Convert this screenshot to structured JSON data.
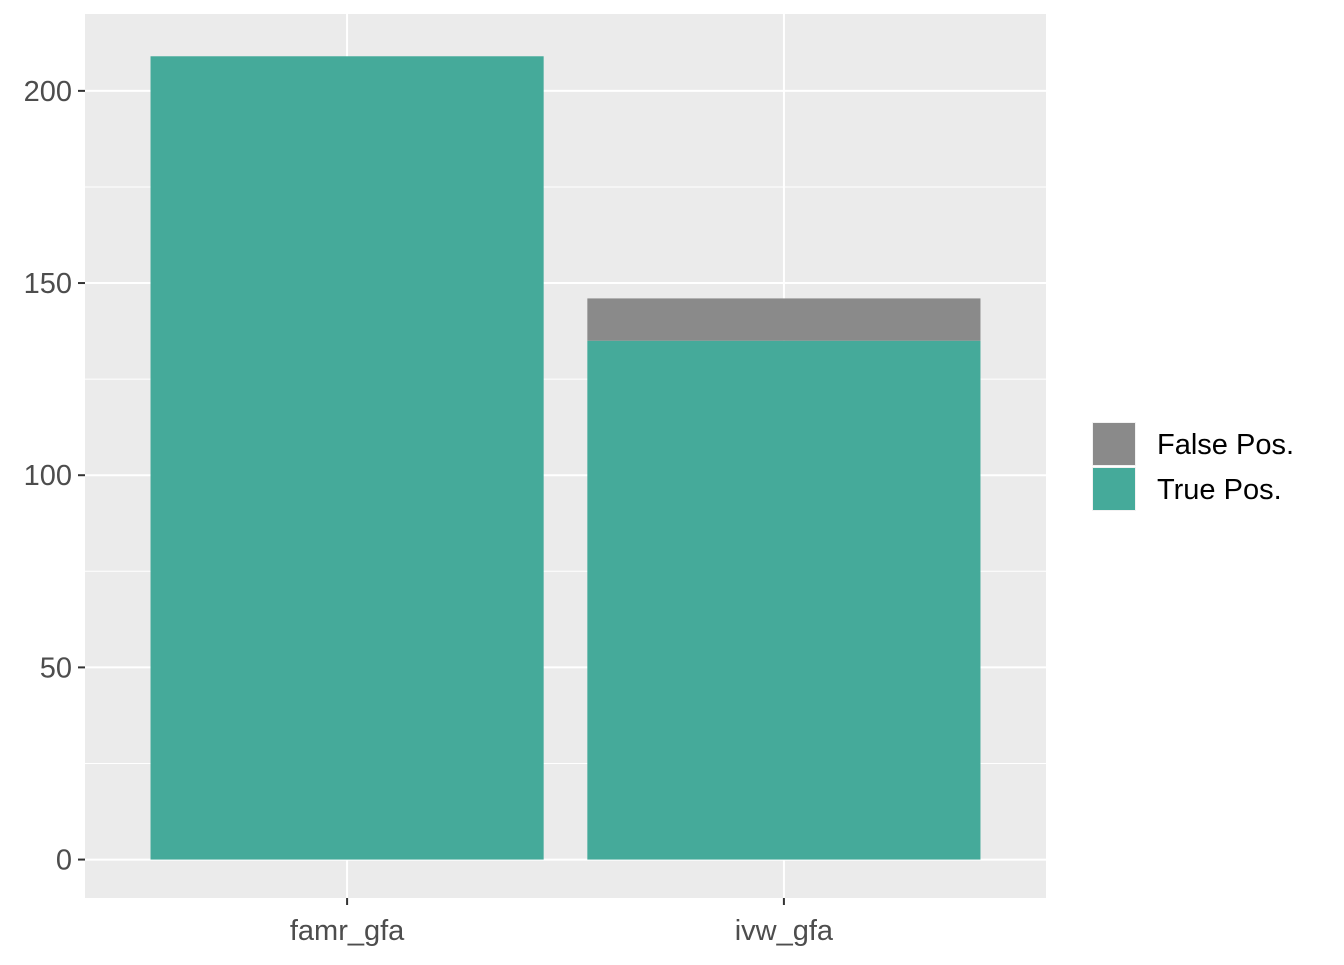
{
  "chart_data": {
    "type": "bar",
    "stacked": true,
    "categories": [
      "famr_gfa",
      "ivw_gfa"
    ],
    "series": [
      {
        "name": "True Pos.",
        "values": [
          209,
          135
        ],
        "color": "#45AA9A"
      },
      {
        "name": "False Pos.",
        "values": [
          0,
          11
        ],
        "color": "#8A8A8A"
      }
    ],
    "ylim": [
      -10,
      220
    ],
    "yticks": [
      0,
      50,
      100,
      150,
      200
    ],
    "title": "",
    "xlabel": "",
    "ylabel": "",
    "grid": true,
    "legend": {
      "position": "right",
      "entries": [
        {
          "label": "False Pos.",
          "color": "#8A8A8A"
        },
        {
          "label": "True Pos.",
          "color": "#45AA9A"
        }
      ]
    },
    "panel_background": "#EBEBEB"
  }
}
